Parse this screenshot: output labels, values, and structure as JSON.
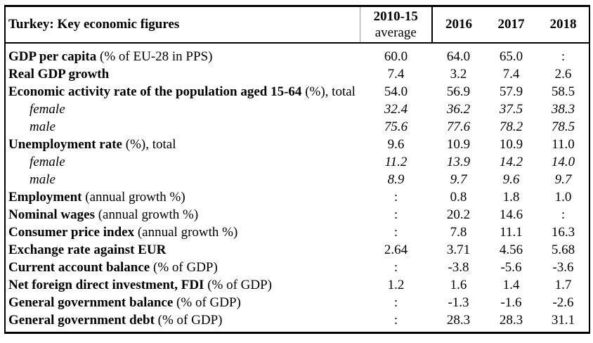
{
  "title": "Turkey: Key economic figures",
  "colors": {
    "text": "#000000",
    "border": "#000000",
    "header_divider_light": "#999999",
    "background": "#ffffff"
  },
  "columns": [
    {
      "label": "2010-15",
      "sublabel": "average"
    },
    {
      "label": "2016",
      "sublabel": ""
    },
    {
      "label": "2017",
      "sublabel": ""
    },
    {
      "label": "2018",
      "sublabel": ""
    }
  ],
  "rows": [
    {
      "label_main": "GDP per capita",
      "label_note": " (% of EU-28 in PPS)",
      "style": "main",
      "values": [
        "60.0",
        "64.0",
        "65.0",
        ":"
      ]
    },
    {
      "label_main": "Real GDP growth",
      "label_note": "",
      "style": "main",
      "values": [
        "7.4",
        "3.2",
        "7.4",
        "2.6"
      ]
    },
    {
      "label_main": "Economic activity rate of the population aged 15-64",
      "label_note": " (%), total",
      "style": "main",
      "values": [
        "54.0",
        "56.9",
        "57.9",
        "58.5"
      ]
    },
    {
      "label_main": "",
      "label_note": "female",
      "style": "sub",
      "values": [
        "32.4",
        "36.2",
        "37.5",
        "38.3"
      ]
    },
    {
      "label_main": "",
      "label_note": "male",
      "style": "sub",
      "values": [
        "75.6",
        "77.6",
        "78.2",
        "78.5"
      ]
    },
    {
      "label_main": "Unemployment rate",
      "label_note": " (%), total",
      "style": "main",
      "values": [
        "9.6",
        "10.9",
        "10.9",
        "11.0"
      ]
    },
    {
      "label_main": "",
      "label_note": "female",
      "style": "sub",
      "values": [
        "11.2",
        "13.9",
        "14.2",
        "14.0"
      ]
    },
    {
      "label_main": "",
      "label_note": "male",
      "style": "sub",
      "values": [
        "8.9",
        "9.7",
        "9.6",
        "9.7"
      ]
    },
    {
      "label_main": "Employment",
      "label_note": " (annual growth %)",
      "style": "main",
      "values": [
        ":",
        "0.8",
        "1.8",
        "1.0"
      ]
    },
    {
      "label_main": "Nominal wages",
      "label_note": " (annual growth %)",
      "style": "main",
      "values": [
        ":",
        "20.2",
        "14.6",
        ":"
      ]
    },
    {
      "label_main": "Consumer price index",
      "label_note": " (annual growth %)",
      "style": "main",
      "values": [
        ":",
        "7.8",
        "11.1",
        "16.3"
      ]
    },
    {
      "label_main": "Exchange rate against EUR",
      "label_note": "",
      "style": "main",
      "values": [
        "2.64",
        "3.71",
        "4.56",
        "5.68"
      ]
    },
    {
      "label_main": "Current account balance",
      "label_note": " (% of GDP)",
      "style": "main",
      "values": [
        ":",
        "-3.8",
        "-5.6",
        "-3.6"
      ]
    },
    {
      "label_main": "Net foreign direct investment, FDI",
      "label_note": " (% of GDP)",
      "style": "main",
      "values": [
        "1.2",
        "1.6",
        "1.4",
        "1.7"
      ]
    },
    {
      "label_main": "General government balance",
      "label_note": " (% of GDP)",
      "style": "main",
      "values": [
        ":",
        "-1.3",
        "-1.6",
        "-2.6"
      ]
    },
    {
      "label_main": "General government debt",
      "label_note": " (% of GDP)",
      "style": "main",
      "values": [
        ":",
        "28.3",
        "28.3",
        "31.1"
      ]
    }
  ]
}
